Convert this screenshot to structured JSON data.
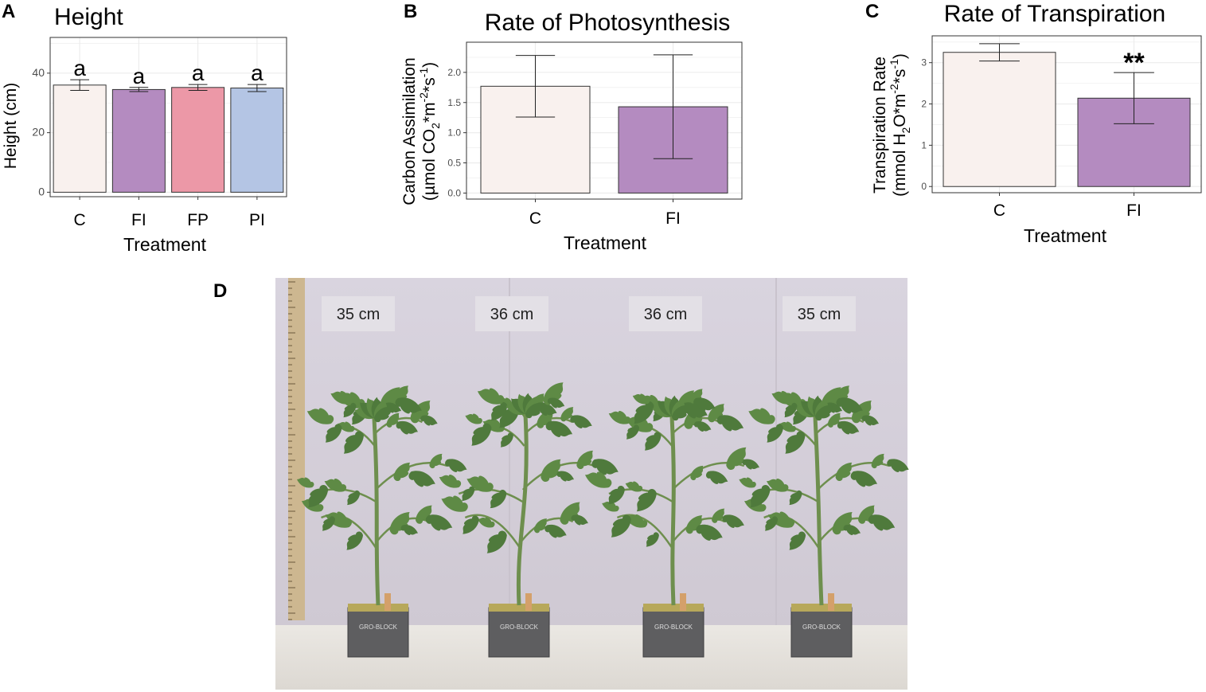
{
  "panels": {
    "A": {
      "label": "A"
    },
    "B": {
      "label": "B"
    },
    "C": {
      "label": "C"
    },
    "D": {
      "label": "D"
    }
  },
  "chart_data": [
    {
      "id": "A",
      "type": "bar",
      "title": "Height",
      "xlabel": "Treatment",
      "ylabel": "Height (cm)",
      "categories": [
        "C",
        "FI",
        "FP",
        "PI"
      ],
      "values": [
        36.0,
        34.5,
        35.2,
        35.0
      ],
      "errors": [
        1.8,
        0.7,
        1.0,
        1.2
      ],
      "annotations": [
        "a",
        "a",
        "a",
        "a"
      ],
      "colors": [
        "#f9f1ee",
        "#b48bc0",
        "#ec98a7",
        "#b4c5e4"
      ],
      "ylim": [
        -1.5,
        52
      ],
      "yticks": [
        0,
        20,
        40
      ],
      "grid": true
    },
    {
      "id": "B",
      "type": "bar",
      "title": "Rate of Photosynthesis",
      "xlabel": "Treatment",
      "ylabel_line1": "Carbon Assimilation",
      "ylabel_line2": {
        "pre": "(µmol CO",
        "sub": "2",
        "mid": "*m",
        "sup1": "-2",
        "mid2": "*s",
        "sup2": "-1",
        "post": ")"
      },
      "categories": [
        "C",
        "FI"
      ],
      "values": [
        1.77,
        1.43
      ],
      "errors": [
        0.51,
        0.86
      ],
      "colors": [
        "#f9f1ee",
        "#b48bc0"
      ],
      "ylim": [
        -0.1,
        2.5
      ],
      "yticks": [
        "0.0",
        "0.5",
        "1.0",
        "1.5",
        "2.0"
      ],
      "grid": true
    },
    {
      "id": "C",
      "type": "bar",
      "title": "Rate of Transpiration",
      "xlabel": "Treatment",
      "ylabel_line1": "Transpiration Rate",
      "ylabel_line2": {
        "pre": "(mmol H",
        "sub": "2",
        "mid": "O*m",
        "sup1": "-2",
        "mid2": "*s",
        "sup2": "-1",
        "post": ")"
      },
      "categories": [
        "C",
        "FI"
      ],
      "values": [
        3.25,
        2.14
      ],
      "errors": [
        0.21,
        0.62
      ],
      "significance": [
        "",
        "**"
      ],
      "colors": [
        "#f9f1ee",
        "#b48bc0"
      ],
      "ylim": [
        -0.15,
        3.65
      ],
      "yticks": [
        0,
        1,
        2,
        3
      ],
      "grid": true
    }
  ],
  "photo": {
    "heights": [
      "35 cm",
      "36 cm",
      "36 cm",
      "35 cm"
    ],
    "pot_text": "GRO-BLOCK"
  },
  "colors": {
    "wall": "#d6d1db",
    "floor": "#e6e3df",
    "leaf": "#4f7a3c",
    "stem": "#6e8f4e",
    "pot": "#5e5e60"
  }
}
